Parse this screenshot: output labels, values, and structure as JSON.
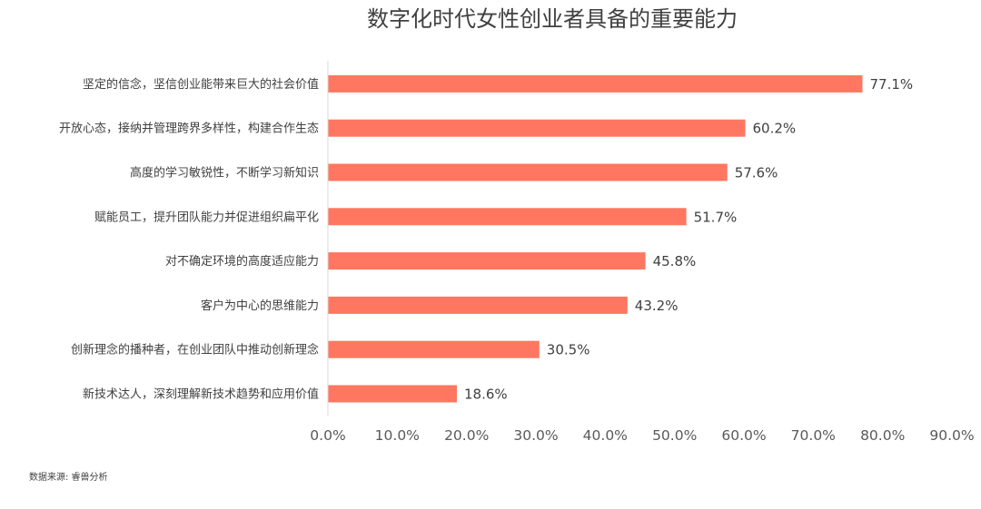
{
  "chart_data": {
    "type": "bar",
    "orientation": "horizontal",
    "title": "数字化时代女性创业者具备的重要能力",
    "categories": [
      "坚定的信念，坚信创业能带来巨大的社会价值",
      "开放心态，接纳并管理跨界多样性，构建合作生态",
      "高度的学习敏锐性，不断学习新知识",
      "赋能员工，提升团队能力并促进组织扁平化",
      "对不确定环境的高度适应能力",
      "客户为中心的思维能力",
      "创新理念的播种者，在创业团队中推动创新理念",
      "新技术达人，深刻理解新技术趋势和应用价值"
    ],
    "values": [
      77.1,
      60.2,
      57.6,
      51.7,
      45.8,
      43.2,
      30.5,
      18.6
    ],
    "value_labels": [
      "77.1%",
      "60.2%",
      "57.6%",
      "51.7%",
      "45.8%",
      "43.2%",
      "30.5%",
      "18.6%"
    ],
    "xlim": [
      0,
      90
    ],
    "x_ticks": [
      "0.0%",
      "10.0%",
      "20.0%",
      "30.0%",
      "40.0%",
      "50.0%",
      "60.0%",
      "70.0%",
      "80.0%",
      "90.0%"
    ],
    "grid": false,
    "bar_color": "#FF7760",
    "axis_color": "#D9D9D9"
  },
  "source": "数据来源: 睿兽分析"
}
